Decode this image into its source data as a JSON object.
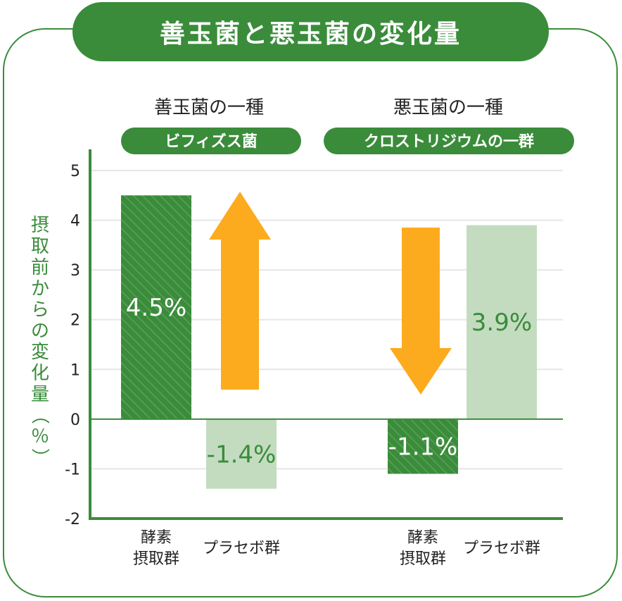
{
  "title": "善玉菌と悪玉菌の変化量",
  "chart_data": {
    "type": "bar",
    "ylabel": "摂取前からの変化量（％）",
    "ylim": [
      -2,
      5
    ],
    "yticks": [
      "-2",
      "-1",
      "0",
      "1",
      "2",
      "3",
      "4",
      "5"
    ],
    "grid": true,
    "colors": {
      "accent": "#3a8c3a",
      "light": "#c3dcc0",
      "arrow": "#fcab1e"
    },
    "groups": [
      {
        "title": "善玉菌の一種",
        "pill": "ビフィズス菌",
        "arrow": "up",
        "bars": [
          {
            "category": [
              "酵素",
              "摂取群"
            ],
            "value": 4.5,
            "label": "4.5%",
            "style": "dark"
          },
          {
            "category": [
              "プラセボ群"
            ],
            "value": -1.4,
            "label": "-1.4%",
            "style": "light"
          }
        ]
      },
      {
        "title": "悪玉菌の一種",
        "pill": "クロストリジウムの一群",
        "arrow": "down",
        "bars": [
          {
            "category": [
              "酵素",
              "摂取群"
            ],
            "value": -1.1,
            "label": "-1.1%",
            "style": "dark"
          },
          {
            "category": [
              "プラセボ群"
            ],
            "value": 3.9,
            "label": "3.9%",
            "style": "light"
          }
        ]
      }
    ]
  }
}
